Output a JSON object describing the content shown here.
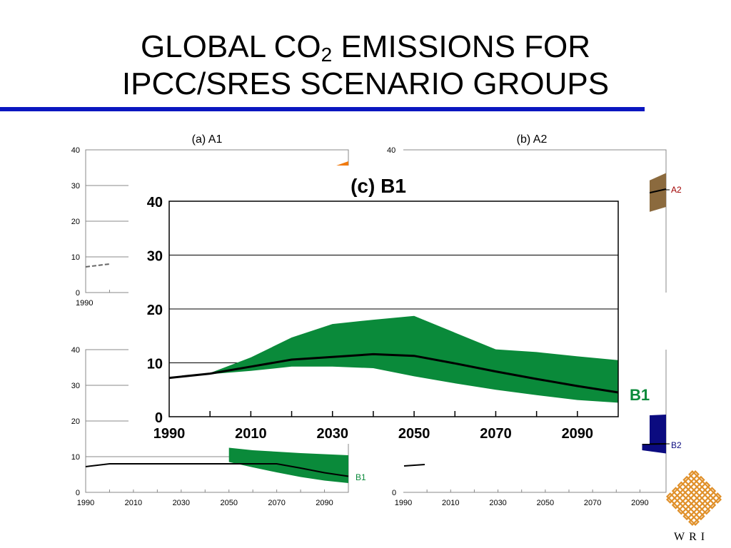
{
  "slide": {
    "title_line1_pre": "GLOBAL CO",
    "title_sub": "2",
    "title_line1_post": " EMISSIONS FOR",
    "title_line2": "IPCC/SRES SCENARIO GROUPS",
    "logo_text": "WRI"
  },
  "colors": {
    "rule": "#0a16c0",
    "a1_band": "#f07a10",
    "a2_band": "#8b6a3e",
    "b1_band": "#0a8a3a",
    "b2_band": "#0b0b80",
    "a2_label": "#a00000",
    "b1_label": "#0a8a3a",
    "b2_label": "#0b0b80",
    "logo": "#e0902a"
  },
  "chart_data": [
    {
      "panel": "a",
      "title": "(a)  A1",
      "type": "area",
      "x_ticks": [
        "1990"
      ],
      "y_ticks": [
        "0",
        "10",
        "20",
        "30",
        "40"
      ],
      "ylim": [
        0,
        40
      ],
      "grid": true,
      "series": [
        {
          "name": "",
          "x": [
            1990,
            2000
          ],
          "values": [
            7.2,
            8.0
          ]
        }
      ]
    },
    {
      "panel": "b",
      "title": "(b)  A2",
      "type": "area",
      "y_ticks": [
        "40"
      ],
      "ylim": [
        0,
        40
      ],
      "series": [
        {
          "name": "A2",
          "x": [
            2090,
            2100
          ],
          "values": [
            27.5,
            29.0
          ]
        }
      ],
      "band": {
        "x": [
          2090,
          2100
        ],
        "upper": [
          30.5,
          33.5
        ],
        "lower": [
          22.0,
          24.0
        ]
      }
    },
    {
      "panel": "bottom-left",
      "title": "",
      "type": "area",
      "x_ticks": [
        "1990",
        "2010",
        "2030",
        "2050",
        "2070",
        "2090"
      ],
      "y_ticks": [
        "0",
        "10",
        "20",
        "30",
        "40"
      ],
      "ylim": [
        0,
        40
      ],
      "grid": true,
      "series": [
        {
          "name": "B1",
          "x": [
            1990,
            2000,
            2070,
            2080,
            2090,
            2100
          ],
          "values": [
            7.2,
            8.0,
            8.0,
            6.8,
            5.5,
            4.5
          ]
        }
      ],
      "band": {
        "x": [
          2050,
          2060,
          2070,
          2080,
          2090,
          2100
        ],
        "upper": [
          12.5,
          11.8,
          11.4,
          11.0,
          10.7,
          10.4
        ],
        "lower": [
          8.5,
          7.0,
          5.6,
          4.3,
          3.3,
          2.6
        ]
      }
    },
    {
      "panel": "bottom-right",
      "title": "",
      "type": "area",
      "x_ticks": [
        "1990",
        "2010",
        "2030",
        "2050",
        "2070",
        "2090"
      ],
      "y_ticks": [
        "0"
      ],
      "ylim": [
        0,
        40
      ],
      "series": [
        {
          "name": "B2",
          "x": [
            2090,
            2100
          ],
          "values": [
            13.5,
            13.6
          ]
        }
      ],
      "band": {
        "x": [
          2090,
          2100
        ],
        "upper": [
          21.5,
          21.8
        ],
        "lower": [
          11.8,
          10.9
        ]
      }
    },
    {
      "panel": "c",
      "title": "(c)  B1",
      "type": "area",
      "x_ticks": [
        "1990",
        "2010",
        "2030",
        "2050",
        "2070",
        "2090"
      ],
      "y_ticks": [
        "0",
        "10",
        "20",
        "30",
        "40"
      ],
      "ylim": [
        0,
        40
      ],
      "xlim": [
        1990,
        2100
      ],
      "grid": true,
      "series": [
        {
          "name": "B1",
          "x": [
            1990,
            2000,
            2010,
            2020,
            2030,
            2040,
            2050,
            2060,
            2070,
            2080,
            2090,
            2100
          ],
          "values": [
            7.2,
            8.0,
            9.3,
            10.6,
            11.1,
            11.6,
            11.3,
            9.9,
            8.4,
            7.0,
            5.7,
            4.5
          ]
        }
      ],
      "band": {
        "x": [
          1990,
          2000,
          2010,
          2020,
          2030,
          2040,
          2050,
          2060,
          2070,
          2080,
          2090,
          2100
        ],
        "upper": [
          7.2,
          8.1,
          11.0,
          14.7,
          17.2,
          18.0,
          18.7,
          15.6,
          12.5,
          12.0,
          11.2,
          10.5
        ],
        "lower": [
          7.2,
          7.9,
          8.5,
          9.3,
          9.3,
          9.0,
          7.5,
          6.2,
          5.0,
          4.0,
          3.1,
          2.6
        ]
      }
    }
  ]
}
